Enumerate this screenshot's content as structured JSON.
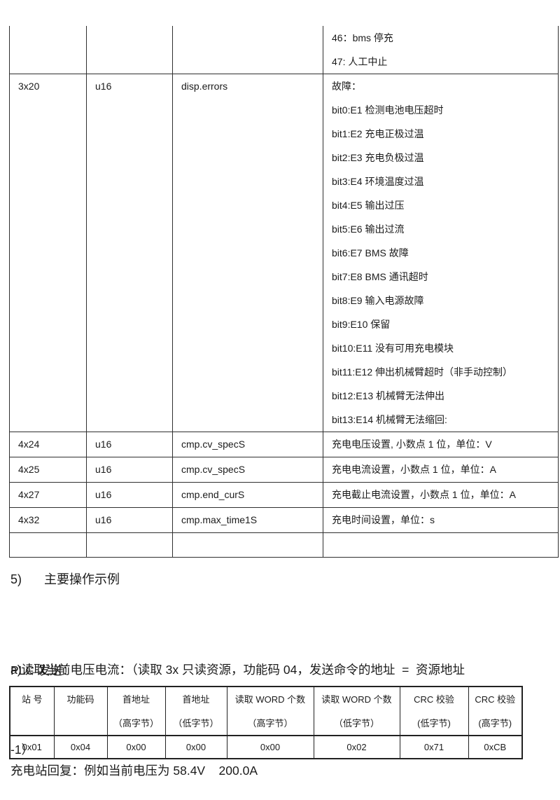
{
  "colors": {
    "text": "#1b1b1b",
    "border_top_table": "#2f2f2f",
    "border_plc_table": "#222222",
    "background": "#ffffff"
  },
  "register_table": {
    "rows": [
      {
        "address": "",
        "type": "",
        "name": "",
        "desc": [
          "46：bms 停充",
          "47: 人工中止"
        ]
      },
      {
        "address": "3x20",
        "type": "u16",
        "name": "disp.errors",
        "desc": [
          "故障：",
          "bit0:E1 检测电池电压超时",
          "bit1:E2 充电正极过温",
          "bit2:E3 充电负极过温",
          "bit3:E4 环境温度过温",
          "bit4:E5 输出过压",
          "bit5:E6 输出过流",
          "bit6:E7 BMS 故障",
          "bit7:E8 BMS 通讯超时",
          "bit8:E9 输入电源故障",
          "bit9:E10 保留",
          "bit10:E11 没有可用充电模块",
          "bit11:E12 伸出机械臂超时（非手动控制）",
          "bit12:E13 机械臂无法伸出",
          "bit13:E14 机械臂无法缩回:"
        ]
      },
      {
        "address": "4x24",
        "type": "u16",
        "name": "cmp.cv_specS",
        "desc": [
          "充电电压设置, 小数点 1 位，单位：V"
        ]
      },
      {
        "address": "4x25",
        "type": "u16",
        "name": "cmp.cv_specS",
        "desc": [
          "充电电流设置，小数点 1 位，单位：A"
        ]
      },
      {
        "address": "4x27",
        "type": "u16",
        "name": "cmp.end_curS",
        "desc": [
          "充电截止电流设置，小数点 1 位，单位：A"
        ]
      },
      {
        "address": "4x32",
        "type": "u16",
        "name": "cmp.max_time1S",
        "desc": [
          "充电时间设置，单位：s"
        ]
      },
      {
        "address": "",
        "type": "",
        "name": "",
        "desc": []
      }
    ]
  },
  "section": {
    "number": "5)",
    "title": "主要操作示例"
  },
  "paragraph_a": {
    "line1": "a)读取当前电压电流：（读取 3x 只读资源，功能码 04，发送命令的地址  =  资源地址",
    "line2": "-1）"
  },
  "plc_send_label": "PLC 发送：",
  "plc_table": {
    "headers": [
      {
        "line1": "站 号",
        "line2": ""
      },
      {
        "line1": "功能码",
        "line2": ""
      },
      {
        "line1": "首地址",
        "line2": "（高字节）"
      },
      {
        "line1": "首地址",
        "line2": "（低字节）"
      },
      {
        "line1": "读取 WORD 个数",
        "line2": "（高字节）"
      },
      {
        "line1": "读取 WORD 个数",
        "line2": "（低字节）"
      },
      {
        "line1": "CRC 校验",
        "line2": "(低字节)"
      },
      {
        "line1": "CRC 校验",
        "line2": "(高字节)"
      }
    ],
    "values": [
      "0x01",
      "0x04",
      "0x00",
      "0x00",
      "0x00",
      "0x02",
      "0x71",
      "0xCB"
    ]
  },
  "reply_line": "充电站回复：例如当前电压为 58.4V    200.0A"
}
